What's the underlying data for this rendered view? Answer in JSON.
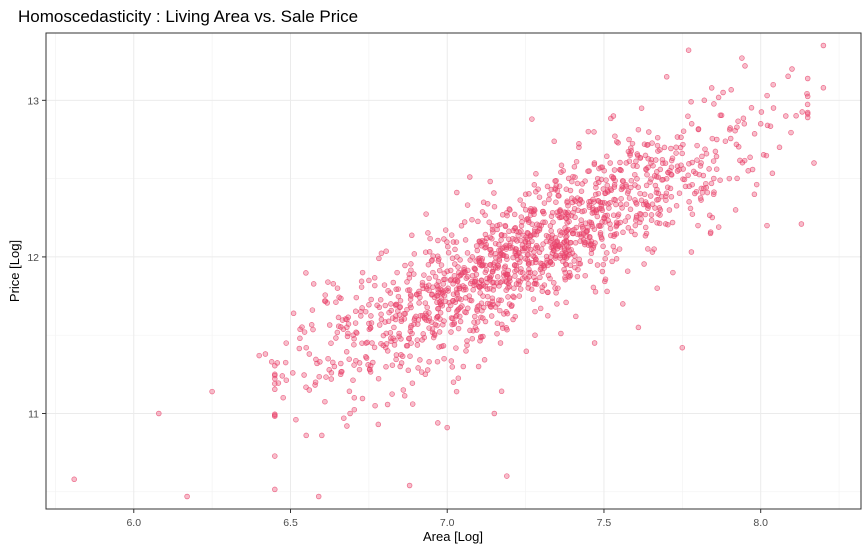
{
  "chart_data": {
    "type": "scatter",
    "title": "Homoscedasticity : Living Area vs. Sale Price",
    "xlabel": "Area [Log]",
    "ylabel": "Price [Log]",
    "xlim": [
      5.72,
      8.32
    ],
    "ylim": [
      10.39,
      13.43
    ],
    "x_ticks": [
      6.0,
      6.5,
      7.0,
      7.5,
      8.0
    ],
    "x_tick_labels": [
      "6.0",
      "6.5",
      "7.0",
      "7.5",
      "8.0"
    ],
    "y_ticks": [
      11,
      12,
      13
    ],
    "y_tick_labels": [
      "11",
      "12",
      "13"
    ],
    "grid": true,
    "point_color": "#e8426a",
    "point_count_approx": 1460,
    "points": [
      [
        5.81,
        10.58
      ],
      [
        6.08,
        11.0
      ],
      [
        6.17,
        10.47
      ],
      [
        6.25,
        11.14
      ],
      [
        6.4,
        11.37
      ],
      [
        6.42,
        11.38
      ],
      [
        6.44,
        11.33
      ],
      [
        6.45,
        11.25
      ],
      [
        6.45,
        11.19
      ],
      [
        6.51,
        11.64
      ],
      [
        6.53,
        11.48
      ],
      [
        6.55,
        11.42
      ],
      [
        6.56,
        11.38
      ],
      [
        6.55,
        10.86
      ],
      [
        6.57,
        11.66
      ],
      [
        6.58,
        11.2
      ],
      [
        6.59,
        10.47
      ],
      [
        6.6,
        10.86
      ],
      [
        6.62,
        11.35
      ],
      [
        6.63,
        11.22
      ],
      [
        6.64,
        11.3
      ],
      [
        6.65,
        11.8
      ],
      [
        6.66,
        11.25
      ],
      [
        6.67,
        10.97
      ],
      [
        6.68,
        11.6
      ],
      [
        6.68,
        10.92
      ],
      [
        6.69,
        11.0
      ],
      [
        6.7,
        11.5
      ],
      [
        6.71,
        11.74
      ],
      [
        6.72,
        11.28
      ],
      [
        6.73,
        11.9
      ],
      [
        6.74,
        11.65
      ],
      [
        6.75,
        11.85
      ],
      [
        6.76,
        11.45
      ],
      [
        6.77,
        11.05
      ],
      [
        6.78,
        10.93
      ],
      [
        6.79,
        11.6
      ],
      [
        6.8,
        11.82
      ],
      [
        6.81,
        11.4
      ],
      [
        6.82,
        11.7
      ],
      [
        6.83,
        11.55
      ],
      [
        6.84,
        11.9
      ],
      [
        6.85,
        11.3
      ],
      [
        6.86,
        11.15
      ],
      [
        6.88,
        10.54
      ],
      [
        6.89,
        11.06
      ],
      [
        6.9,
        11.62
      ],
      [
        6.91,
        11.78
      ],
      [
        6.92,
        11.47
      ],
      [
        6.93,
        11.25
      ],
      [
        6.94,
        11.95
      ],
      [
        6.96,
        11.5
      ],
      [
        6.97,
        10.94
      ],
      [
        6.98,
        11.7
      ],
      [
        6.99,
        11.35
      ],
      [
        7.0,
        10.91
      ],
      [
        7.01,
        11.85
      ],
      [
        7.02,
        11.2
      ],
      [
        7.03,
        11.14
      ],
      [
        7.04,
        11.62
      ],
      [
        7.05,
        11.9
      ],
      [
        7.06,
        11.4
      ],
      [
        7.07,
        11.75
      ],
      [
        7.08,
        12.0
      ],
      [
        7.09,
        11.55
      ],
      [
        7.1,
        11.3
      ],
      [
        7.11,
        11.85
      ],
      [
        7.12,
        12.1
      ],
      [
        7.14,
        11.68
      ],
      [
        7.15,
        11.0
      ],
      [
        7.16,
        12.2
      ],
      [
        7.17,
        11.45
      ],
      [
        7.18,
        11.9
      ],
      [
        7.19,
        10.6
      ],
      [
        7.2,
        12.3
      ],
      [
        7.21,
        11.6
      ],
      [
        7.22,
        12.05
      ],
      [
        7.23,
        11.75
      ],
      [
        7.25,
        12.4
      ],
      [
        7.26,
        11.9
      ],
      [
        7.27,
        12.1
      ],
      [
        7.27,
        12.88
      ],
      [
        7.28,
        11.5
      ],
      [
        7.3,
        12.2
      ],
      [
        7.31,
        11.82
      ],
      [
        7.32,
        12.45
      ],
      [
        7.33,
        12.0
      ],
      [
        7.35,
        11.7
      ],
      [
        7.36,
        12.3
      ],
      [
        7.37,
        12.55
      ],
      [
        7.38,
        11.95
      ],
      [
        7.4,
        12.15
      ],
      [
        7.41,
        11.62
      ],
      [
        7.42,
        12.7
      ],
      [
        7.43,
        12.35
      ],
      [
        7.44,
        11.88
      ],
      [
        7.45,
        12.8
      ],
      [
        7.46,
        12.1
      ],
      [
        7.47,
        11.45
      ],
      [
        7.48,
        12.5
      ],
      [
        7.5,
        12.25
      ],
      [
        7.51,
        11.78
      ],
      [
        7.52,
        12.6
      ],
      [
        7.53,
        12.9
      ],
      [
        7.55,
        12.05
      ],
      [
        7.56,
        11.7
      ],
      [
        7.57,
        12.45
      ],
      [
        7.58,
        12.75
      ],
      [
        7.6,
        12.2
      ],
      [
        7.61,
        11.55
      ],
      [
        7.62,
        12.95
      ],
      [
        7.63,
        12.4
      ],
      [
        7.65,
        12.6
      ],
      [
        7.66,
        12.05
      ],
      [
        7.67,
        11.8
      ],
      [
        7.68,
        12.3
      ],
      [
        7.7,
        13.15
      ],
      [
        7.71,
        12.55
      ],
      [
        7.72,
        11.9
      ],
      [
        7.73,
        12.7
      ],
      [
        7.75,
        11.42
      ],
      [
        7.76,
        12.45
      ],
      [
        7.77,
        13.32
      ],
      [
        7.78,
        12.85
      ],
      [
        7.8,
        12.2
      ],
      [
        7.81,
        12.6
      ],
      [
        7.82,
        13.0
      ],
      [
        7.84,
        12.15
      ],
      [
        7.85,
        12.4
      ],
      [
        7.86,
        12.75
      ],
      [
        7.88,
        13.05
      ],
      [
        7.9,
        12.5
      ],
      [
        7.92,
        12.3
      ],
      [
        7.94,
        13.27
      ],
      [
        7.95,
        13.22
      ],
      [
        7.96,
        12.55
      ],
      [
        7.98,
        12.4
      ],
      [
        8.0,
        12.85
      ],
      [
        8.02,
        12.2
      ],
      [
        8.04,
        13.1
      ],
      [
        8.06,
        12.7
      ],
      [
        8.08,
        12.9
      ],
      [
        8.1,
        13.2
      ],
      [
        8.13,
        12.21
      ],
      [
        8.17,
        12.6
      ],
      [
        8.2,
        13.35
      ],
      [
        8.2,
        13.08
      ]
    ]
  }
}
